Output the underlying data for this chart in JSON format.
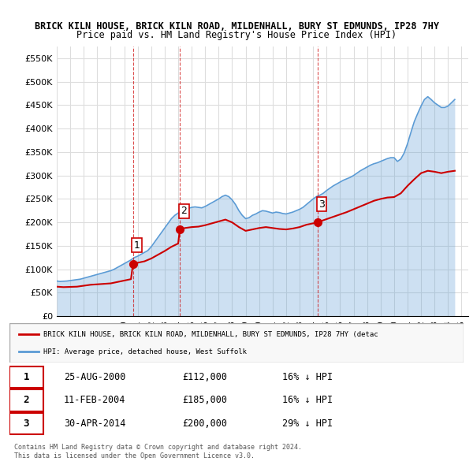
{
  "title1": "BRICK KILN HOUSE, BRICK KILN ROAD, MILDENHALL, BURY ST EDMUNDS, IP28 7HY",
  "title2": "Price paid vs. HM Land Registry's House Price Index (HPI)",
  "ylabel_ticks": [
    "£0",
    "£50K",
    "£100K",
    "£150K",
    "£200K",
    "£250K",
    "£300K",
    "£350K",
    "£400K",
    "£450K",
    "£500K",
    "£550K"
  ],
  "ytick_vals": [
    0,
    50000,
    100000,
    150000,
    200000,
    250000,
    300000,
    350000,
    400000,
    450000,
    500000,
    550000
  ],
  "hpi_color": "#5b9bd5",
  "price_color": "#cc0000",
  "sale_color": "#cc0000",
  "background_color": "#ffffff",
  "grid_color": "#dddddd",
  "legend_box_color": "#f0f0f0",
  "sale_points": [
    {
      "date": 2000.65,
      "price": 112000,
      "label": "1"
    },
    {
      "date": 2004.12,
      "price": 185000,
      "label": "2"
    },
    {
      "date": 2014.33,
      "price": 200000,
      "label": "3"
    }
  ],
  "sale_vlines": [
    2000.65,
    2004.12,
    2014.33
  ],
  "table_rows": [
    [
      "1",
      "25-AUG-2000",
      "£112,000",
      "16% ↓ HPI"
    ],
    [
      "2",
      "11-FEB-2004",
      "£185,000",
      "16% ↓ HPI"
    ],
    [
      "3",
      "30-APR-2014",
      "£200,000",
      "29% ↓ HPI"
    ]
  ],
  "legend_line1": "BRICK KILN HOUSE, BRICK KILN ROAD, MILDENHALL, BURY ST EDMUNDS, IP28 7HY (detac",
  "legend_line2": "HPI: Average price, detached house, West Suffolk",
  "footnote": "Contains HM Land Registry data © Crown copyright and database right 2024.\nThis data is licensed under the Open Government Licence v3.0.",
  "xmin": 1995.0,
  "xmax": 2025.5,
  "ymin": 0,
  "ymax": 575000,
  "hpi_data": {
    "years": [
      1995.0,
      1995.25,
      1995.5,
      1995.75,
      1996.0,
      1996.25,
      1996.5,
      1996.75,
      1997.0,
      1997.25,
      1997.5,
      1997.75,
      1998.0,
      1998.25,
      1998.5,
      1998.75,
      1999.0,
      1999.25,
      1999.5,
      1999.75,
      2000.0,
      2000.25,
      2000.5,
      2000.75,
      2001.0,
      2001.25,
      2001.5,
      2001.75,
      2002.0,
      2002.25,
      2002.5,
      2002.75,
      2003.0,
      2003.25,
      2003.5,
      2003.75,
      2004.0,
      2004.25,
      2004.5,
      2004.75,
      2005.0,
      2005.25,
      2005.5,
      2005.75,
      2006.0,
      2006.25,
      2006.5,
      2006.75,
      2007.0,
      2007.25,
      2007.5,
      2007.75,
      2008.0,
      2008.25,
      2008.5,
      2008.75,
      2009.0,
      2009.25,
      2009.5,
      2009.75,
      2010.0,
      2010.25,
      2010.5,
      2010.75,
      2011.0,
      2011.25,
      2011.5,
      2011.75,
      2012.0,
      2012.25,
      2012.5,
      2012.75,
      2013.0,
      2013.25,
      2013.5,
      2013.75,
      2014.0,
      2014.25,
      2014.5,
      2014.75,
      2015.0,
      2015.25,
      2015.5,
      2015.75,
      2016.0,
      2016.25,
      2016.5,
      2016.75,
      2017.0,
      2017.25,
      2017.5,
      2017.75,
      2018.0,
      2018.25,
      2018.5,
      2018.75,
      2019.0,
      2019.25,
      2019.5,
      2019.75,
      2020.0,
      2020.25,
      2020.5,
      2020.75,
      2021.0,
      2021.25,
      2021.5,
      2021.75,
      2022.0,
      2022.25,
      2022.5,
      2022.75,
      2023.0,
      2023.25,
      2023.5,
      2023.75,
      2024.0,
      2024.25,
      2024.5
    ],
    "values": [
      75000,
      74000,
      74500,
      75000,
      76000,
      77000,
      78000,
      79000,
      81000,
      83000,
      85000,
      87000,
      89000,
      91000,
      93000,
      95000,
      97000,
      100000,
      104000,
      108000,
      112000,
      116000,
      120000,
      125000,
      128000,
      132000,
      136000,
      140000,
      148000,
      158000,
      168000,
      178000,
      188000,
      198000,
      208000,
      215000,
      220000,
      225000,
      228000,
      230000,
      232000,
      233000,
      232000,
      231000,
      234000,
      238000,
      242000,
      246000,
      250000,
      255000,
      258000,
      255000,
      248000,
      238000,
      225000,
      215000,
      208000,
      210000,
      215000,
      218000,
      222000,
      225000,
      224000,
      222000,
      220000,
      222000,
      221000,
      219000,
      218000,
      220000,
      222000,
      225000,
      228000,
      232000,
      238000,
      244000,
      250000,
      255000,
      258000,
      262000,
      268000,
      273000,
      278000,
      282000,
      286000,
      290000,
      293000,
      296000,
      300000,
      305000,
      310000,
      314000,
      318000,
      322000,
      325000,
      327000,
      330000,
      333000,
      336000,
      338000,
      338000,
      330000,
      335000,
      348000,
      368000,
      392000,
      415000,
      432000,
      448000,
      462000,
      468000,
      462000,
      455000,
      450000,
      445000,
      445000,
      448000,
      455000,
      462000
    ]
  },
  "price_line_data": {
    "years": [
      1995.0,
      1995.5,
      1996.0,
      1996.5,
      1997.0,
      1997.5,
      1998.0,
      1998.5,
      1999.0,
      1999.5,
      2000.0,
      2000.5,
      2000.65,
      2000.65,
      2001.0,
      2001.5,
      2002.0,
      2002.5,
      2003.0,
      2003.5,
      2004.0,
      2004.12,
      2004.12,
      2004.5,
      2005.0,
      2005.5,
      2006.0,
      2006.5,
      2007.0,
      2007.5,
      2008.0,
      2008.5,
      2009.0,
      2009.5,
      2010.0,
      2010.5,
      2011.0,
      2011.5,
      2012.0,
      2012.5,
      2013.0,
      2013.5,
      2014.0,
      2014.33,
      2014.33,
      2014.5,
      2015.0,
      2015.5,
      2016.0,
      2016.5,
      2017.0,
      2017.5,
      2018.0,
      2018.5,
      2019.0,
      2019.5,
      2020.0,
      2020.5,
      2021.0,
      2021.5,
      2022.0,
      2022.5,
      2023.0,
      2023.5,
      2024.0,
      2024.5
    ],
    "values": [
      63000,
      62000,
      62500,
      63000,
      65000,
      67000,
      68000,
      69000,
      70000,
      73000,
      76000,
      79000,
      112000,
      112000,
      114000,
      117000,
      123000,
      131000,
      139000,
      148000,
      155000,
      185000,
      185000,
      188000,
      190000,
      191000,
      194000,
      198000,
      202000,
      206000,
      200000,
      190000,
      182000,
      185000,
      188000,
      190000,
      188000,
      186000,
      185000,
      187000,
      190000,
      195000,
      198000,
      200000,
      200000,
      202000,
      207000,
      212000,
      217000,
      222000,
      228000,
      234000,
      240000,
      246000,
      250000,
      253000,
      254000,
      262000,
      278000,
      292000,
      305000,
      310000,
      308000,
      305000,
      308000,
      310000
    ]
  }
}
